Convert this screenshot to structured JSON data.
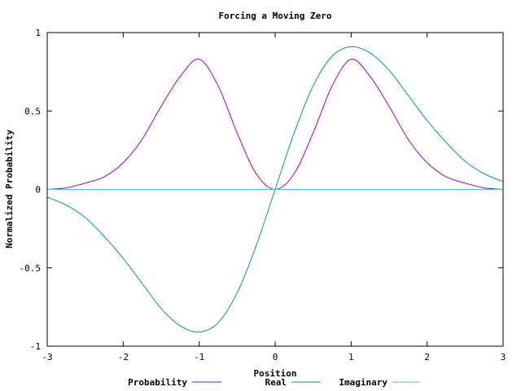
{
  "chart_data": {
    "type": "line",
    "title": "Forcing a Moving Zero",
    "xlabel": "Position",
    "ylabel": "Normalized Probability",
    "xlim": [
      -3,
      3
    ],
    "ylim": [
      -1,
      1
    ],
    "x_ticks": [
      "-3",
      "-2",
      "-1",
      "0",
      "1",
      "2",
      "3"
    ],
    "y_ticks": [
      "-1",
      "-0.5",
      "0",
      "0.5",
      "1"
    ],
    "legend_position": "bottom",
    "x": [
      -3.0,
      -2.75,
      -2.5,
      -2.25,
      -2.0,
      -1.75,
      -1.5,
      -1.25,
      -1.0,
      -0.75,
      -0.5,
      -0.25,
      0.0,
      0.25,
      0.5,
      0.75,
      1.0,
      1.25,
      1.5,
      1.75,
      2.0,
      2.25,
      2.5,
      2.75,
      3.0
    ],
    "series": [
      {
        "name": "Probability",
        "color": "#9400d3",
        "values": [
          0.0,
          0.01,
          0.04,
          0.08,
          0.17,
          0.32,
          0.53,
          0.72,
          0.83,
          0.66,
          0.36,
          0.1,
          0.0,
          0.1,
          0.36,
          0.66,
          0.83,
          0.72,
          0.53,
          0.32,
          0.17,
          0.08,
          0.04,
          0.01,
          0.0
        ]
      },
      {
        "name": "Real",
        "color": "#009e73",
        "values": [
          -0.05,
          -0.1,
          -0.18,
          -0.3,
          -0.44,
          -0.6,
          -0.76,
          -0.87,
          -0.91,
          -0.85,
          -0.66,
          -0.36,
          0.0,
          0.36,
          0.66,
          0.85,
          0.91,
          0.87,
          0.76,
          0.6,
          0.44,
          0.3,
          0.18,
          0.1,
          0.05
        ]
      },
      {
        "name": "Imaginary",
        "color": "#56b4e9",
        "values": [
          0,
          0,
          0,
          0,
          0,
          0,
          0,
          0,
          0,
          0,
          0,
          0,
          0,
          0,
          0,
          0,
          0,
          0,
          0,
          0,
          0,
          0,
          0,
          0,
          0
        ]
      }
    ]
  }
}
